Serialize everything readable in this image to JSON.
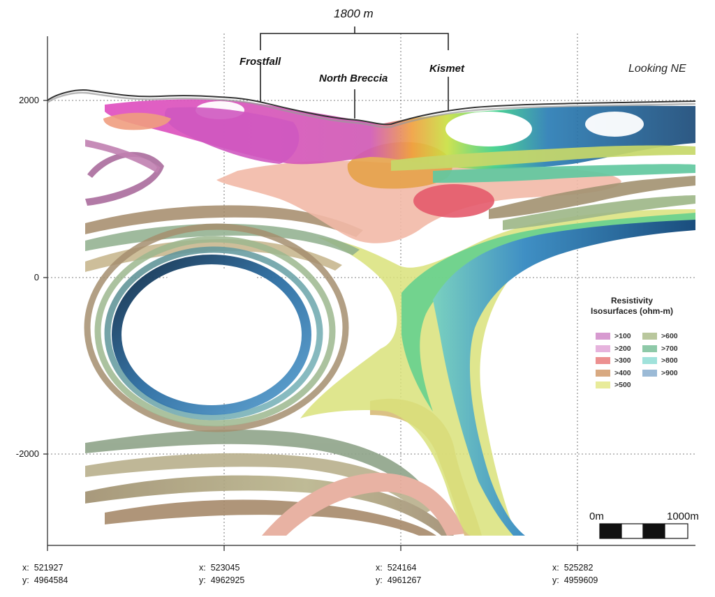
{
  "span_label": "1800 m",
  "view_direction": "Looking NE",
  "sites": [
    {
      "label": "Frostfall"
    },
    {
      "label": "North Breccia"
    },
    {
      "label": "Kismet"
    }
  ],
  "y_ticks": [
    "2000",
    "0",
    "-2000"
  ],
  "x_ticks": [
    {
      "x_label": "x:",
      "x": "521927",
      "y_label": "y:",
      "y": "4964584"
    },
    {
      "x_label": "x:",
      "x": "523045",
      "y_label": "y:",
      "y": "4962925"
    },
    {
      "x_label": "x:",
      "x": "524164",
      "y_label": "y:",
      "y": "4961267"
    },
    {
      "x_label": "x:",
      "x": "525282",
      "y_label": "y:",
      "y": "4959609"
    }
  ],
  "legend": {
    "title_line1": "Resistivity",
    "title_line2": "Isosurfaces (ohm-m)",
    "items": [
      {
        "label": ">100",
        "color": "#d79ad0"
      },
      {
        "label": ">200",
        "color": "#e6b3dd"
      },
      {
        "label": ">300",
        "color": "#ec9090"
      },
      {
        "label": ">400",
        "color": "#d8a981"
      },
      {
        "label": ">500",
        "color": "#e8eb9a"
      },
      {
        "label": ">600",
        "color": "#b9c79d"
      },
      {
        "label": ">700",
        "color": "#8ec9a8"
      },
      {
        "label": ">800",
        "color": "#a0e2db"
      },
      {
        "label": ">900",
        "color": "#9bbad6"
      }
    ]
  },
  "scale_bar": {
    "start_label": "0m",
    "end_label": "1000m"
  }
}
